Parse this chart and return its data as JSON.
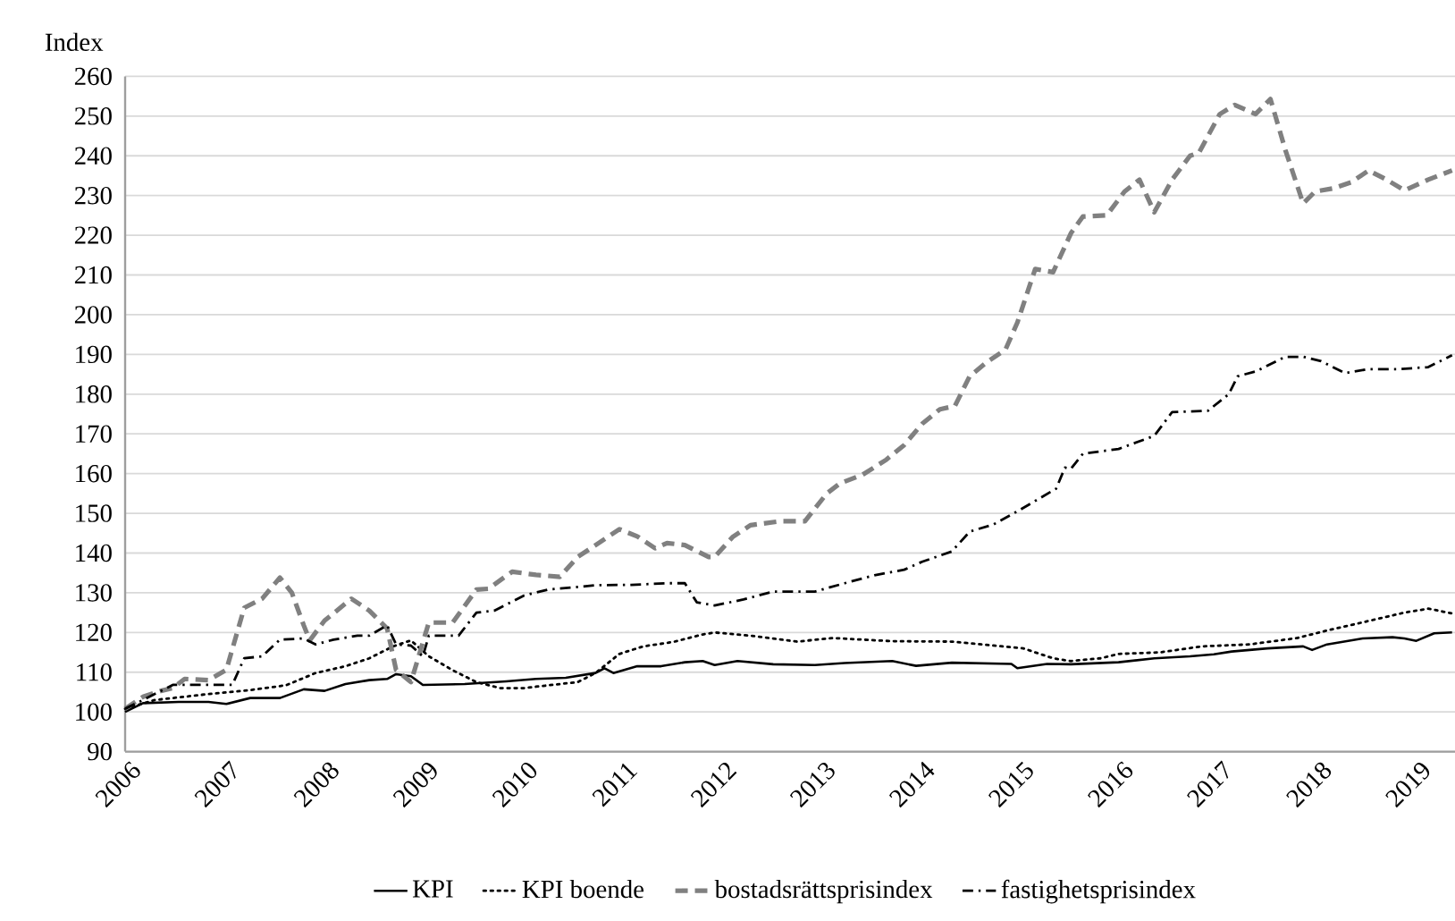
{
  "chart_data": {
    "type": "line",
    "ylabel": "Index",
    "xlim": [
      2006,
      2019.4
    ],
    "xticks": [
      2006,
      2007,
      2008,
      2009,
      2010,
      2011,
      2012,
      2013,
      2014,
      2015,
      2016,
      2017,
      2018,
      2019
    ],
    "ylim": [
      90,
      260
    ],
    "yticks": [
      90,
      100,
      110,
      120,
      130,
      140,
      150,
      160,
      170,
      180,
      190,
      200,
      210,
      220,
      230,
      240,
      250,
      260
    ],
    "grid": "y",
    "legend": "bottom",
    "series": [
      {
        "name": "KPI",
        "color": "#000000",
        "line_style": "solid",
        "x": [
          2006.0,
          2006.18,
          2006.54,
          2006.84,
          2007.02,
          2007.26,
          2007.56,
          2007.8,
          2008.01,
          2008.22,
          2008.46,
          2008.64,
          2008.73,
          2008.88,
          2009.0,
          2009.42,
          2009.84,
          2010.14,
          2010.44,
          2010.74,
          2010.83,
          2010.92,
          2011.16,
          2011.4,
          2011.64,
          2011.82,
          2011.94,
          2012.17,
          2012.53,
          2012.95,
          2013.25,
          2013.73,
          2013.97,
          2014.33,
          2014.93,
          2014.99,
          2015.29,
          2015.53,
          2016.01,
          2016.37,
          2016.73,
          2016.97,
          2017.15,
          2017.51,
          2017.87,
          2017.96,
          2018.11,
          2018.47,
          2018.77,
          2018.89,
          2019.01,
          2019.19,
          2019.37
        ],
        "values": [
          100,
          102.2,
          102.5,
          102.5,
          102,
          103.5,
          103.5,
          105.7,
          105.3,
          107,
          108,
          108.3,
          109.5,
          109,
          106.8,
          107,
          107.7,
          108.3,
          108.6,
          109.8,
          111,
          109.8,
          111.5,
          111.5,
          112.5,
          112.8,
          111.8,
          112.8,
          112,
          111.8,
          112.3,
          112.8,
          111.6,
          112.4,
          112.1,
          111,
          112.1,
          112,
          112.5,
          113.5,
          114,
          114.5,
          115.2,
          116,
          116.5,
          115.6,
          117,
          118.5,
          118.8,
          118.5,
          117.9,
          119.8,
          120
        ]
      },
      {
        "name": "KPI boende",
        "color": "#000000",
        "line_style": "dotted",
        "x": [
          2006.0,
          2006.3,
          2006.84,
          2007.26,
          2007.62,
          2007.92,
          2008.22,
          2008.46,
          2008.7,
          2008.88,
          2009.06,
          2009.3,
          2009.54,
          2009.78,
          2010.02,
          2010.26,
          2010.56,
          2010.74,
          2010.98,
          2011.22,
          2011.52,
          2011.82,
          2011.94,
          2012.3,
          2012.77,
          2013.13,
          2013.73,
          2014.33,
          2015.05,
          2015.35,
          2015.53,
          2015.83,
          2016.01,
          2016.43,
          2016.85,
          2017.33,
          2017.81,
          2018.11,
          2018.53,
          2018.89,
          2019.13,
          2019.37
        ],
        "values": [
          100.8,
          103,
          104.5,
          105.5,
          106.7,
          109.8,
          111.5,
          113.5,
          116.5,
          118,
          114,
          110.5,
          107.5,
          106,
          106,
          106.7,
          107.5,
          109.8,
          114.6,
          116.5,
          117.6,
          119.5,
          120,
          119.2,
          117.7,
          118.6,
          117.8,
          117.7,
          116,
          113.5,
          112.8,
          113.5,
          114.6,
          115,
          116.5,
          117,
          118.6,
          120.5,
          122.9,
          125,
          126,
          124.8
        ]
      },
      {
        "name": "bostadsrättsprisindex",
        "color": "#808080",
        "line_style": "dashed",
        "x": [
          2006.0,
          2006.18,
          2006.36,
          2006.48,
          2006.6,
          2006.84,
          2007.02,
          2007.2,
          2007.38,
          2007.56,
          2007.68,
          2007.8,
          2007.86,
          2008.01,
          2008.28,
          2008.46,
          2008.64,
          2008.73,
          2008.88,
          2009.06,
          2009.3,
          2009.54,
          2009.66,
          2009.9,
          2010.14,
          2010.38,
          2010.56,
          2010.74,
          2010.98,
          2011.16,
          2011.34,
          2011.46,
          2011.64,
          2011.88,
          2011.94,
          2012.12,
          2012.3,
          2012.6,
          2012.85,
          2013.07,
          2013.2,
          2013.43,
          2013.67,
          2013.85,
          2014.03,
          2014.21,
          2014.36,
          2014.51,
          2014.69,
          2014.87,
          2014.99,
          2015.17,
          2015.35,
          2015.53,
          2015.65,
          2015.89,
          2016.07,
          2016.22,
          2016.37,
          2016.55,
          2016.73,
          2016.82,
          2017.03,
          2017.18,
          2017.39,
          2017.54,
          2017.69,
          2017.87,
          2017.99,
          2018.17,
          2018.35,
          2018.53,
          2018.71,
          2018.89,
          2019.13,
          2019.37
        ],
        "values": [
          100.8,
          103.8,
          105.3,
          106,
          108.3,
          108,
          110.6,
          126.2,
          128.5,
          133.8,
          130,
          121.8,
          118,
          123,
          128.5,
          125.5,
          121,
          110.6,
          107.5,
          122.5,
          122.5,
          130.8,
          131,
          135.3,
          134.5,
          134,
          139,
          142,
          146,
          144.2,
          141.2,
          142.5,
          142,
          139,
          139,
          144,
          147,
          148,
          148,
          155,
          157.5,
          159.7,
          163.5,
          167.2,
          172.5,
          176.2,
          177,
          184.5,
          188.2,
          191.2,
          198,
          211.5,
          210.7,
          220.5,
          224.7,
          225,
          231,
          234,
          225.8,
          234,
          240,
          240.8,
          250.5,
          252.8,
          250.5,
          254.3,
          241.5,
          228,
          231,
          231.8,
          233.3,
          236.3,
          234,
          231.3,
          234,
          236.3
        ]
      },
      {
        "name": "fastighetsprisindex",
        "color": "#000000",
        "line_style": "dashdot",
        "x": [
          2006.0,
          2006.18,
          2006.48,
          2006.84,
          2007.08,
          2007.2,
          2007.38,
          2007.56,
          2007.8,
          2007.92,
          2008.1,
          2008.34,
          2008.46,
          2008.64,
          2008.73,
          2008.88,
          2009.0,
          2009.06,
          2009.36,
          2009.54,
          2009.72,
          2010.02,
          2010.26,
          2010.5,
          2010.74,
          2011.1,
          2011.46,
          2011.64,
          2011.76,
          2011.94,
          2012.23,
          2012.53,
          2012.95,
          2013.25,
          2013.55,
          2013.85,
          2014.03,
          2014.33,
          2014.51,
          2014.75,
          2014.99,
          2015.23,
          2015.38,
          2015.47,
          2015.53,
          2015.65,
          2016.01,
          2016.37,
          2016.55,
          2016.91,
          2017.12,
          2017.21,
          2017.39,
          2017.69,
          2017.87,
          2018.05,
          2018.29,
          2018.53,
          2018.83,
          2019.13,
          2019.37
        ],
        "values": [
          100.8,
          103,
          106.8,
          106.8,
          106.8,
          113.5,
          114,
          118.2,
          118.5,
          117,
          118.2,
          119.2,
          119.2,
          121.8,
          117,
          116.7,
          114,
          119.2,
          119.2,
          125,
          125.5,
          129.3,
          130.8,
          131.3,
          131.9,
          132,
          132.4,
          132.4,
          127.6,
          126.8,
          128.3,
          130.3,
          130.3,
          132.4,
          134.4,
          135.8,
          137.8,
          140.4,
          145.4,
          147.2,
          150.5,
          154,
          156.2,
          161.5,
          161.2,
          165,
          166.2,
          169.5,
          175.5,
          175.8,
          180,
          184.5,
          185.7,
          189.4,
          189.4,
          188.3,
          185.3,
          186.3,
          186.3,
          186.8,
          189.8
        ]
      }
    ]
  }
}
